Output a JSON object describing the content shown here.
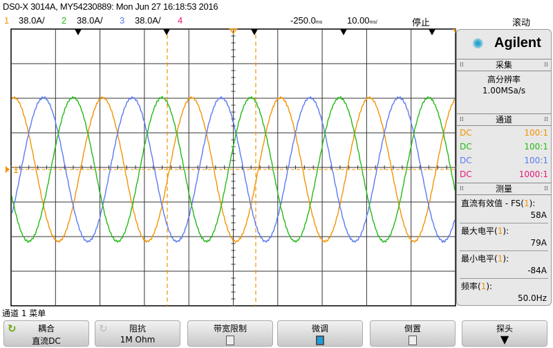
{
  "header": {
    "title": "DS0-X 3014A, MY54230889: Mon Jun 27 16:18:53 2016",
    "channels": [
      {
        "num": "1",
        "scale": "38.0A/",
        "color": "#f39200"
      },
      {
        "num": "2",
        "scale": "38.0A/",
        "color": "#22b814"
      },
      {
        "num": "3",
        "scale": "38.0A/",
        "color": "#5a78f0"
      },
      {
        "num": "4",
        "scale": "",
        "color": "#e6167a"
      }
    ],
    "delay": "-250.0",
    "delay_unit": "ms",
    "timebase": "10.00",
    "timebase_unit": "ms/",
    "run_state": "停止",
    "mode": "滚动"
  },
  "waveform": {
    "frequency_hz": 50,
    "volts_per_div_a": 38,
    "peak_a": 79,
    "ground_label": "1"
  },
  "panel": {
    "logo": "Agilent",
    "acquire": {
      "header": "采集",
      "mode": "高分辨率",
      "rate": "1.00MSa/s"
    },
    "channels": {
      "header": "通道",
      "rows": [
        {
          "coupling": "DC",
          "probe": "100:1",
          "color": "#f39200"
        },
        {
          "coupling": "DC",
          "probe": "100:1",
          "color": "#22b814"
        },
        {
          "coupling": "DC",
          "probe": "100:1",
          "color": "#5a78f0"
        },
        {
          "coupling": "DC",
          "probe": "1000:1",
          "color": "#e6167a"
        }
      ]
    },
    "measure": {
      "header": "测量",
      "items": [
        {
          "label": "直流有效值 - FS(",
          "src": "1",
          "end": "):",
          "value": "58A"
        },
        {
          "label": "最大电平(",
          "src": "1",
          "end": "):",
          "value": "79A"
        },
        {
          "label": "最小电平(",
          "src": "1",
          "end": "):",
          "value": "-84A"
        },
        {
          "label": "频率(",
          "src": "1",
          "end": "):",
          "value": "50.0Hz"
        }
      ]
    }
  },
  "menu": {
    "title": "通道 1 菜单",
    "softkeys": [
      {
        "label": "耦合",
        "value": "直流DC"
      },
      {
        "label": "阻抗",
        "value": "1M Ohm"
      },
      {
        "label": "带宽限制",
        "checked": false
      },
      {
        "label": "微调",
        "checked": true
      },
      {
        "label": "倒置",
        "checked": false
      },
      {
        "label": "探头"
      }
    ]
  }
}
